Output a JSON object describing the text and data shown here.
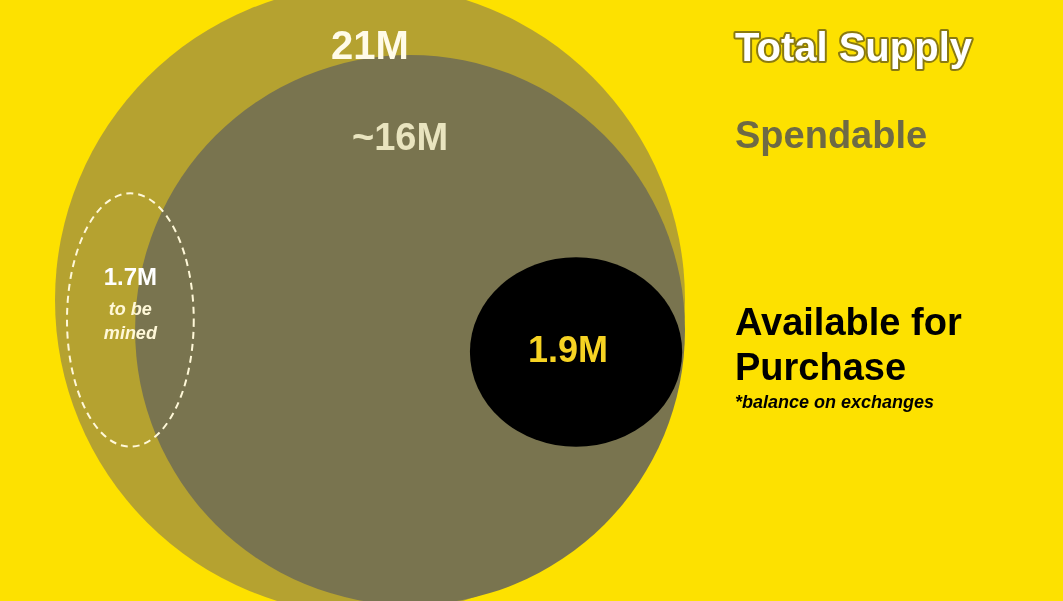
{
  "chart_data": {
    "type": "other",
    "categories": [
      "Total Supply",
      "Spendable",
      "Available for Purchase",
      "to be mined"
    ],
    "values": [
      21,
      16,
      1.9,
      1.7
    ],
    "value_labels": [
      "21M",
      "~16M",
      "1.9M",
      "1.7M"
    ],
    "colors": [
      "#b5a230",
      "#79744f",
      "#000000",
      "#fff8d8"
    ],
    "annotations": [
      "*balance on exchanges"
    ]
  }
}
